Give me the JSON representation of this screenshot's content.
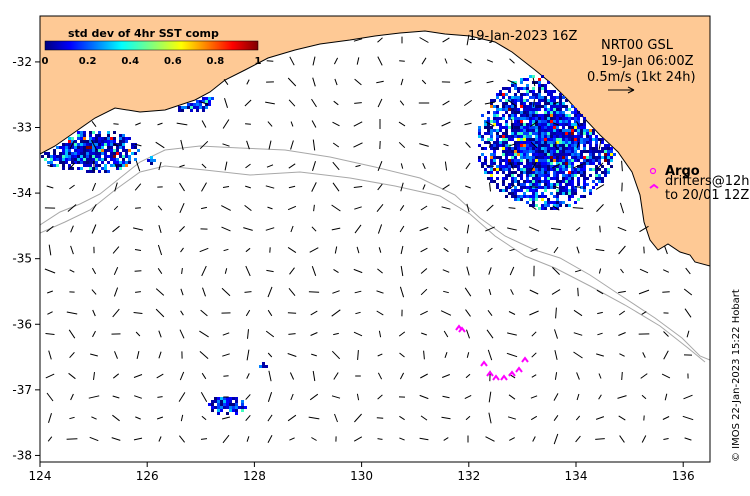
{
  "map": {
    "title_datetime": "19-Jan-2023 16Z",
    "current_info": {
      "line1": "NRT00 GSL",
      "line2": "19-Jan 06:00Z",
      "line3": "0.5m/s (1kt 24h)"
    },
    "argo": {
      "label": "Argo",
      "drifters_line1": "drifters@12h",
      "drifters_line2": "to 20/01 12Z"
    },
    "credit": "© IMOS 22-Jan-2023 15:22 Hobart",
    "colorbar": {
      "title": "std dev of 4hr SST comp",
      "ticks": [
        "0",
        "0.2",
        "0.4",
        "0.6",
        "0.8",
        "1"
      ]
    },
    "x_ticks": [
      "124",
      "126",
      "128",
      "130",
      "132",
      "134",
      "136"
    ],
    "y_ticks": [
      "-32",
      "-33",
      "-34",
      "-35",
      "-36",
      "-37",
      "-38"
    ],
    "lon_range": [
      124,
      136.5
    ],
    "lat_range": [
      -38.1,
      -31.3
    ],
    "colors": {
      "land": "#fec995",
      "drifter": "#ff00ff",
      "bathymetry": "#a8a8a8"
    }
  }
}
